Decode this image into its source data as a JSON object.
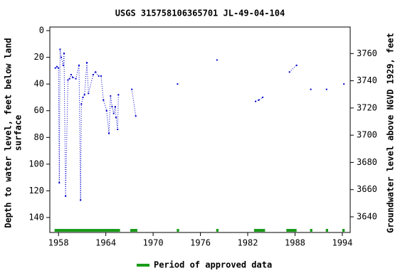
{
  "chart_data": {
    "type": "line",
    "title": "USGS 315758106365701 JL-49-04-104",
    "y_label_lines": [
      "Depth to water level, feet below land",
      "surface"
    ],
    "y2_label": "Groundwater level above NGVD 1929, feet",
    "xlim": [
      1956.9,
      1995.0
    ],
    "xticks": [
      1958,
      1964,
      1970,
      1976,
      1982,
      1988,
      1994
    ],
    "ylim": [
      -2.7,
      151.2
    ],
    "y_inverted": true,
    "yticks": [
      0,
      20,
      40,
      60,
      80,
      100,
      120,
      140
    ],
    "y2lim": [
      3628.5,
      3779.5
    ],
    "y2ticks": [
      3640,
      3660,
      3680,
      3700,
      3720,
      3740,
      3760
    ],
    "grid": false,
    "max_connect_gap": 1,
    "series": [
      {
        "name": "Depth to water level",
        "color": "#0000cc",
        "x": [
          1957.6,
          1957.8,
          1958.0,
          1958.1,
          1958.2,
          1958.35,
          1958.6,
          1958.7,
          1958.9,
          1959.2,
          1959.4,
          1959.6,
          1959.8,
          1960.2,
          1960.6,
          1960.8,
          1960.9,
          1961.1,
          1961.3,
          1961.6,
          1961.8,
          1962.4,
          1962.7,
          1963.1,
          1963.4,
          1963.7,
          1964.1,
          1964.4,
          1964.6,
          1964.8,
          1965.0,
          1965.2,
          1965.3,
          1965.5,
          1965.6,
          1967.3,
          1967.8,
          1973.1,
          1978.1,
          1983.0,
          1983.4,
          1983.9,
          1987.3,
          1988.2,
          1990.0,
          1992.0,
          1994.2
        ],
        "values": [
          28,
          27,
          28,
          114,
          14,
          20,
          26,
          17,
          124,
          37,
          36,
          33,
          35,
          36,
          26,
          127,
          55,
          50,
          48,
          24,
          47,
          33,
          31,
          34,
          34,
          52,
          60,
          77,
          49,
          57,
          62,
          57,
          65,
          74,
          48,
          44,
          64,
          40,
          22,
          53,
          52,
          50,
          31,
          26,
          44,
          44,
          40
        ]
      }
    ],
    "periods": {
      "name": "Period of approved data",
      "color": "#1a9c1a",
      "ranges": [
        [
          1957.5,
          1965.8
        ],
        [
          1967.1,
          1968.0
        ],
        [
          1973.0,
          1973.3
        ],
        [
          1978.0,
          1978.3
        ],
        [
          1982.8,
          1984.2
        ],
        [
          1986.9,
          1988.2
        ],
        [
          1989.9,
          1990.2
        ],
        [
          1991.9,
          1992.2
        ],
        [
          1994.0,
          1994.3
        ]
      ]
    }
  }
}
